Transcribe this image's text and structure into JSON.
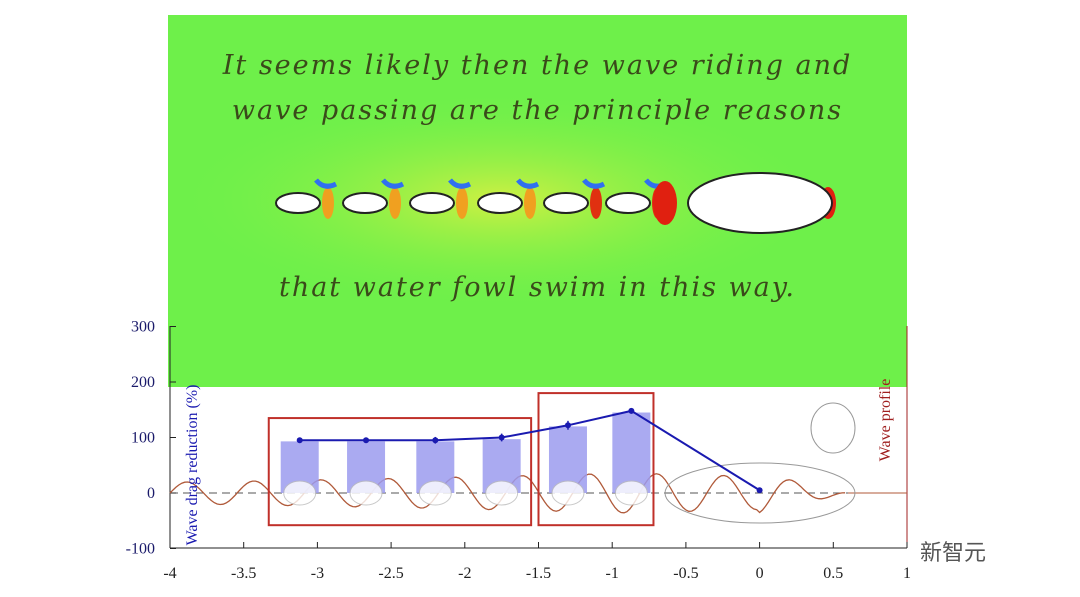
{
  "overlay_text": {
    "line1": "It seems likely then the wave riding and",
    "line2": "wave passing are the principle reasons",
    "line3": "that water fowl swim in this way."
  },
  "watermark": "新智元",
  "colors": {
    "bars": "#9b9bef",
    "line": "#1a1ab0",
    "boxes": "#c0302a",
    "wave": "#b05a3a",
    "panel": "#6ef04a"
  },
  "chart_data": {
    "type": "bar",
    "xlim": [
      -4,
      1
    ],
    "ylim": [
      -100,
      300
    ],
    "x_ticks": [
      "-4",
      "-3.5",
      "-3",
      "-2.5",
      "-2",
      "-1.5",
      "-1",
      "-0.5",
      "0",
      "0.5",
      "1"
    ],
    "y_ticks": [
      "-100",
      "0",
      "100",
      "200",
      "300"
    ],
    "ylabel": "Wave drag reduction (%)",
    "y2label": "Wave profile",
    "bars": {
      "x": [
        -3.12,
        -2.67,
        -2.2,
        -1.75,
        -1.3,
        -0.87
      ],
      "values": [
        93,
        93,
        93,
        97,
        120,
        145
      ]
    },
    "line": {
      "x": [
        -3.12,
        -2.67,
        -2.2,
        -1.75,
        -1.3,
        -0.87,
        0
      ],
      "values": [
        95,
        95,
        95,
        100,
        122,
        148,
        5
      ],
      "errors": [
        3,
        3,
        6,
        7,
        8,
        5,
        0
      ]
    },
    "boxes": [
      {
        "x": [
          -3.33,
          -1.55
        ],
        "y": [
          -58,
          135
        ]
      },
      {
        "x": [
          -1.5,
          -0.72
        ],
        "y": [
          -58,
          180
        ]
      }
    ]
  }
}
